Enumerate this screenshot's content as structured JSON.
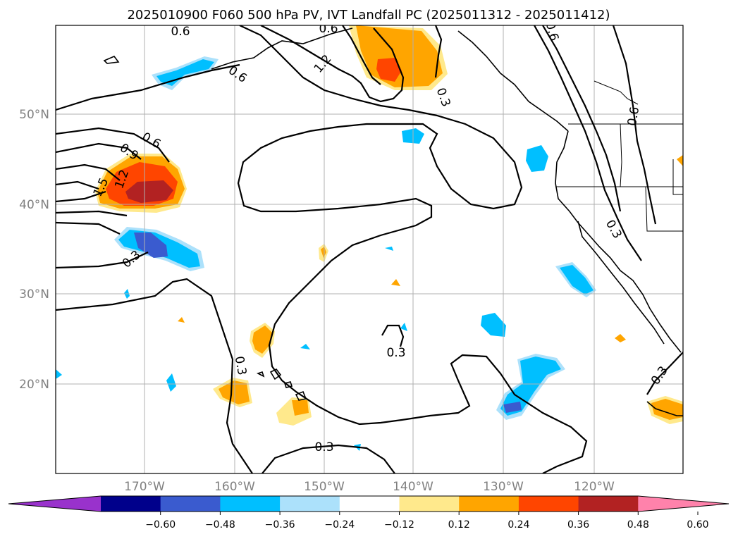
{
  "title": "2025010900 F060 500 hPa PV, IVT Landfall PC (2025011312 - 2025011412)",
  "lat_labels": [
    "50°N",
    "40°N",
    "30°N",
    "20°N"
  ],
  "lon_labels": [
    "170°W",
    "160°W",
    "150°W",
    "140°W",
    "130°W",
    "120°W"
  ],
  "colorbar": {
    "tick_labels": [
      "−0.60",
      "−0.48",
      "−0.36",
      "−0.24",
      "−0.12",
      "0.12",
      "0.24",
      "0.36",
      "0.48",
      "0.60"
    ],
    "colors": [
      "#9932cc",
      "#00008b",
      "#3a5bcf",
      "#00bfff",
      "#ace1fb",
      "#ffffff",
      "#ffe98c",
      "#ffa500",
      "#ff4500",
      "#b22222",
      "#ff82ab"
    ]
  },
  "contour_labels": [
    "0.6",
    "0.6",
    "1.2",
    "0.6",
    "0.3",
    "0.6",
    "0.9",
    "1.2",
    "1.5",
    "0.3",
    "0.3",
    "0.3",
    "0.3",
    "0.6",
    "0.6",
    "0.3",
    "0.3"
  ]
}
